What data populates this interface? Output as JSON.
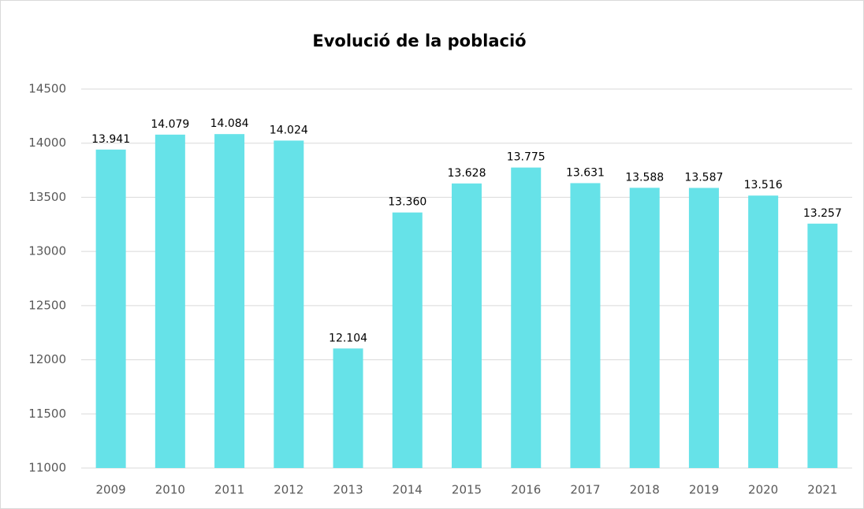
{
  "chart_data": {
    "type": "bar",
    "title": "Evolució de la població",
    "categories": [
      "2009",
      "2010",
      "2011",
      "2012",
      "2013",
      "2014",
      "2015",
      "2016",
      "2017",
      "2018",
      "2019",
      "2020",
      "2021"
    ],
    "values": [
      13941,
      14079,
      14084,
      14024,
      12104,
      13360,
      13628,
      13775,
      13631,
      13588,
      13587,
      13516,
      13257
    ],
    "value_labels": [
      "13.941",
      "14.079",
      "14.084",
      "14.024",
      "12.104",
      "13.360",
      "13.628",
      "13.775",
      "13.631",
      "13.588",
      "13.587",
      "13.516",
      "13.257"
    ],
    "color": "#66e2e8",
    "ylim": [
      11000,
      14500
    ],
    "yticks": [
      11000,
      11500,
      12000,
      12500,
      13000,
      13500,
      14000,
      14500
    ],
    "grid": true
  }
}
